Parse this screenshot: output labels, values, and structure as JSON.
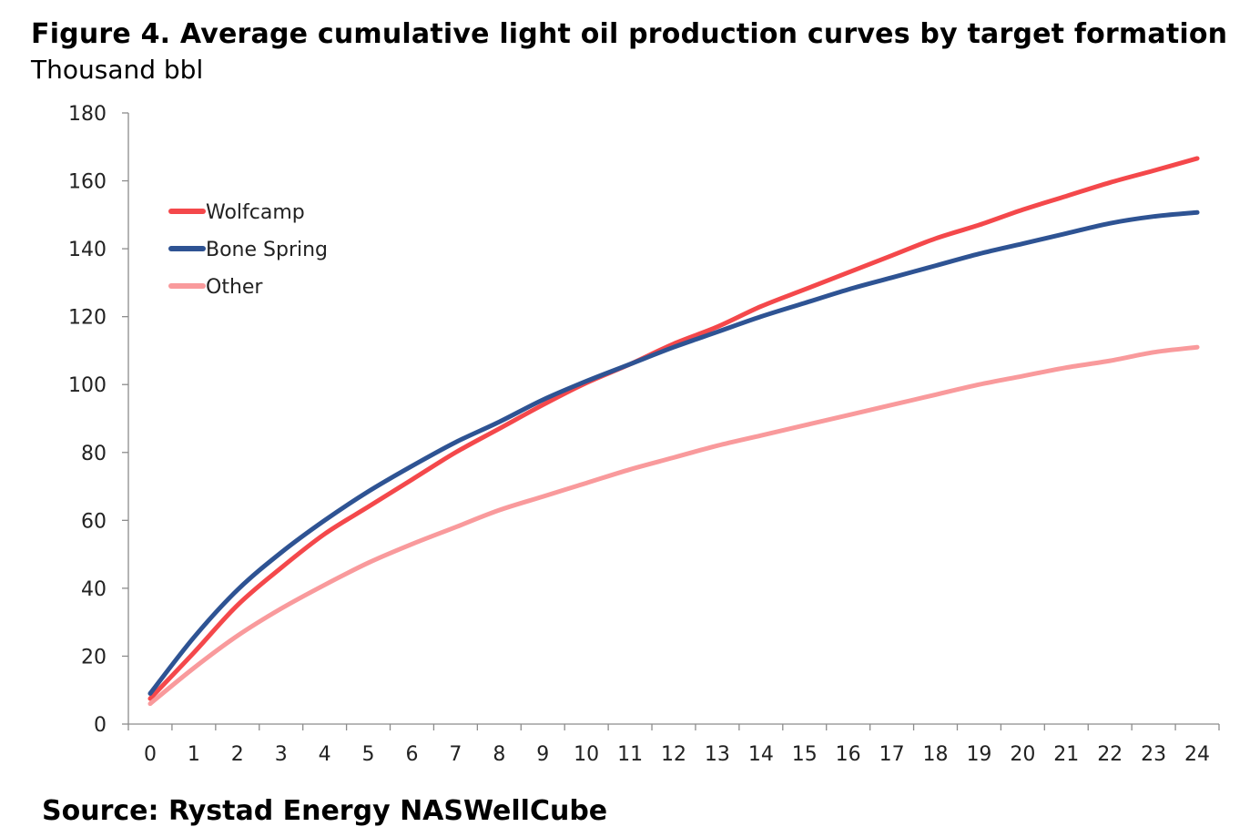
{
  "header": {
    "title": "Figure 4. Average cumulative light oil production curves by target formation",
    "subtitle": "Thousand bbl"
  },
  "footer": {
    "source": "Source: Rystad Energy NASWellCube"
  },
  "chart_data": {
    "type": "line",
    "title": "Figure 4. Average cumulative light oil production curves by target formation",
    "ylabel": "Thousand bbl",
    "xlabel": "",
    "x": [
      0,
      1,
      2,
      3,
      4,
      5,
      6,
      7,
      8,
      9,
      10,
      11,
      12,
      13,
      14,
      15,
      16,
      17,
      18,
      19,
      20,
      21,
      22,
      23,
      24
    ],
    "xlim": [
      0,
      24
    ],
    "ylim": [
      0,
      180
    ],
    "y_ticks": [
      0,
      20,
      40,
      60,
      80,
      100,
      120,
      140,
      160,
      180
    ],
    "x_tick_labels": [
      "0",
      "1",
      "2",
      "3",
      "4",
      "5",
      "6",
      "7",
      "8",
      "9",
      "10",
      "11",
      "12",
      "13",
      "14",
      "15",
      "16",
      "17",
      "18",
      "19",
      "20",
      "21",
      "22",
      "23",
      "24"
    ],
    "grid": false,
    "legend_position": "top-left",
    "series": [
      {
        "name": "Wolfcamp",
        "color": "#F4484B",
        "values": [
          7.5,
          21,
          35,
          46,
          56,
          64,
          72,
          80,
          87,
          94,
          100.5,
          106,
          112,
          117,
          123,
          128,
          133,
          138,
          143,
          147,
          151.5,
          155.5,
          159.5,
          163,
          166.6
        ]
      },
      {
        "name": "Bone Spring",
        "color": "#2E5393",
        "values": [
          9,
          25.5,
          39.5,
          50.5,
          60,
          68.5,
          76,
          83,
          89,
          95.5,
          101,
          106,
          111,
          115.5,
          120,
          124,
          128,
          131.5,
          135,
          138.5,
          141.5,
          144.5,
          147.5,
          149.5,
          150.7
        ]
      },
      {
        "name": "Other",
        "color": "#F99A9C",
        "values": [
          6,
          16.5,
          26,
          34,
          41,
          47.5,
          53,
          58,
          63,
          67,
          71,
          75,
          78.5,
          82,
          85,
          88,
          91,
          94,
          97,
          100,
          102.5,
          105,
          107,
          109.5,
          111
        ]
      }
    ]
  }
}
